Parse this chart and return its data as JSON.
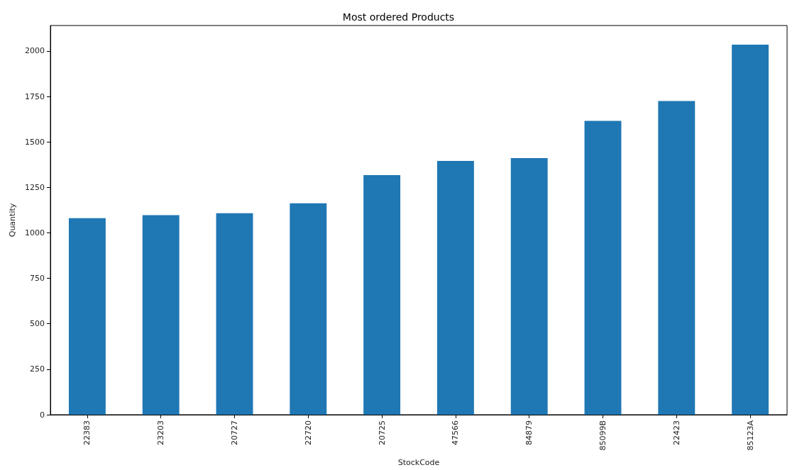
{
  "chart_data": {
    "type": "bar",
    "title": "Most ordered Products",
    "xlabel": "StockCode",
    "ylabel": "Quantity",
    "categories": [
      "22383",
      "23203",
      "20727",
      "22720",
      "20725",
      "47566",
      "84879",
      "85099B",
      "22423",
      "85123A"
    ],
    "values": [
      1081,
      1097,
      1108,
      1163,
      1318,
      1395,
      1411,
      1616,
      1725,
      2035
    ],
    "color": "#1f77b4",
    "ylim": [
      0,
      2140
    ],
    "yticks": [
      0,
      250,
      500,
      750,
      1000,
      1250,
      1500,
      1750,
      2000
    ],
    "grid": false
  }
}
